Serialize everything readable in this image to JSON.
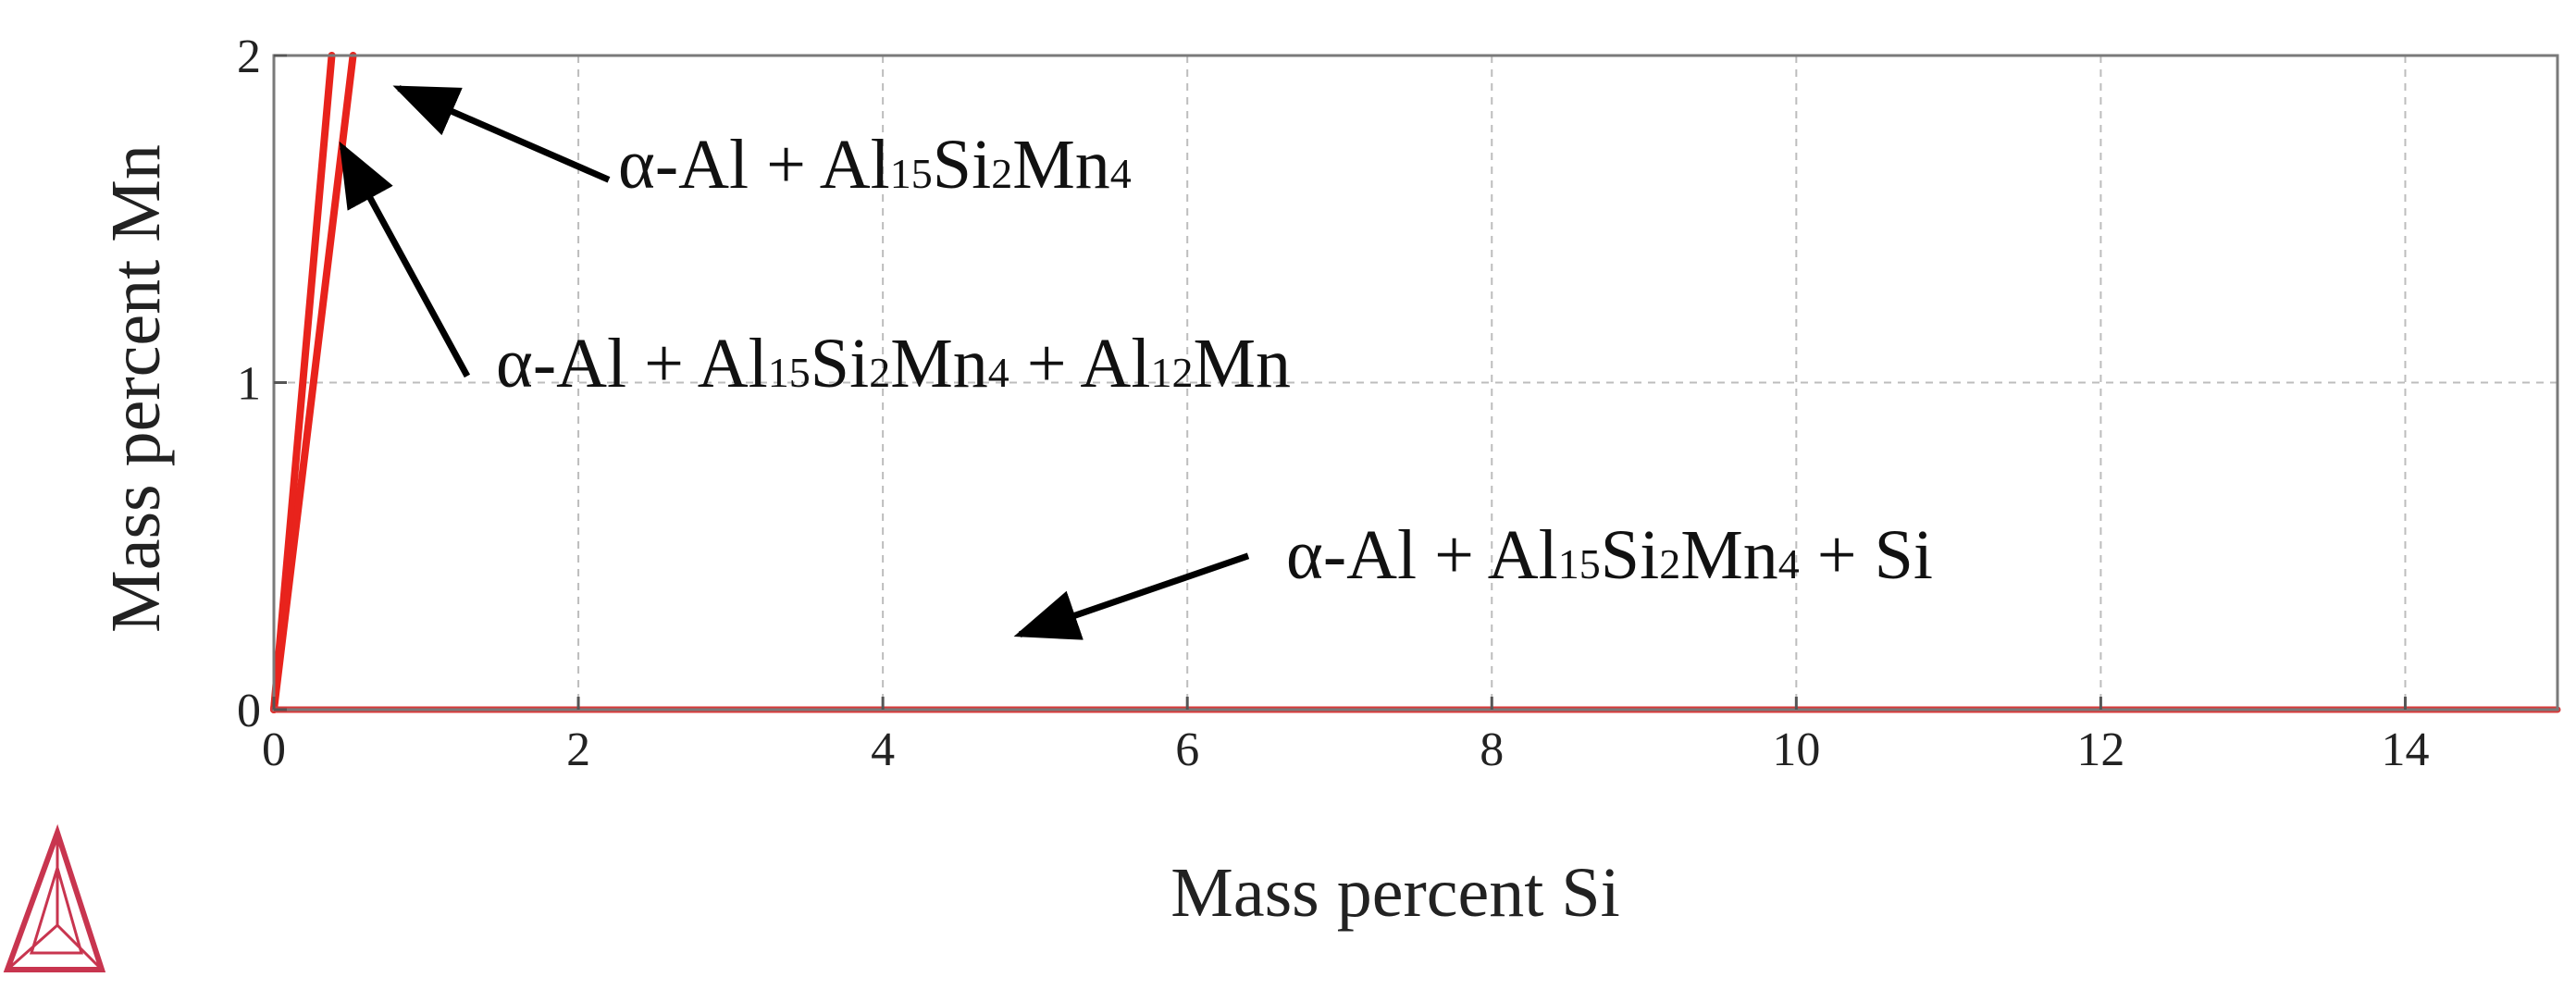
{
  "chart_data": {
    "type": "line",
    "xlabel": "Mass percent Si",
    "ylabel": "Mass percent Mn",
    "xlim": [
      0,
      15
    ],
    "ylim": [
      0,
      2
    ],
    "xticks": [
      "0",
      "2",
      "4",
      "6",
      "8",
      "10",
      "12",
      "14"
    ],
    "yticks": [
      "0",
      "1",
      "2"
    ],
    "grid": true,
    "series": [
      {
        "x": [
          0,
          0.38
        ],
        "y": [
          0,
          2.0
        ]
      },
      {
        "x": [
          0,
          0.52
        ],
        "y": [
          0,
          2.0
        ]
      },
      {
        "x": [
          0,
          15
        ],
        "y": [
          0,
          0
        ]
      }
    ],
    "annotations": [
      {
        "text": [
          {
            "t": "α-Al + Al",
            "sub": false
          },
          {
            "t": "15",
            "sub": true
          },
          {
            "t": "Si",
            "sub": false
          },
          {
            "t": "2",
            "sub": true
          },
          {
            "t": "Mn",
            "sub": false
          },
          {
            "t": "4",
            "sub": true
          }
        ],
        "arrow_from": [
          2.2,
          1.62
        ],
        "arrow_to": [
          0.82,
          1.9
        ]
      },
      {
        "text": [
          {
            "t": "α-Al + Al",
            "sub": false
          },
          {
            "t": "15",
            "sub": true
          },
          {
            "t": "Si",
            "sub": false
          },
          {
            "t": "2",
            "sub": true
          },
          {
            "t": "Mn",
            "sub": false
          },
          {
            "t": "4",
            "sub": true
          },
          {
            "t": " + Al",
            "sub": false
          },
          {
            "t": "12",
            "sub": true
          },
          {
            "t": "Mn",
            "sub": false
          }
        ],
        "arrow_from": [
          1.27,
          1.02
        ],
        "arrow_to": [
          0.45,
          1.72
        ]
      },
      {
        "text": [
          {
            "t": "α-Al + Al",
            "sub": false
          },
          {
            "t": "15",
            "sub": true
          },
          {
            "t": "Si",
            "sub": false
          },
          {
            "t": "2",
            "sub": true
          },
          {
            "t": "Mn",
            "sub": false
          },
          {
            "t": "4",
            "sub": true
          },
          {
            "t": " + Si",
            "sub": false
          }
        ],
        "arrow_from": [
          6.4,
          0.47
        ],
        "arrow_to": [
          4.9,
          0.23
        ]
      }
    ],
    "colors": {
      "line": "#e8231c",
      "baseline": "#d83a3a",
      "logo": "#c8354f"
    }
  },
  "logo": {
    "icon": "thermo-calc-triangle-logo-icon"
  }
}
